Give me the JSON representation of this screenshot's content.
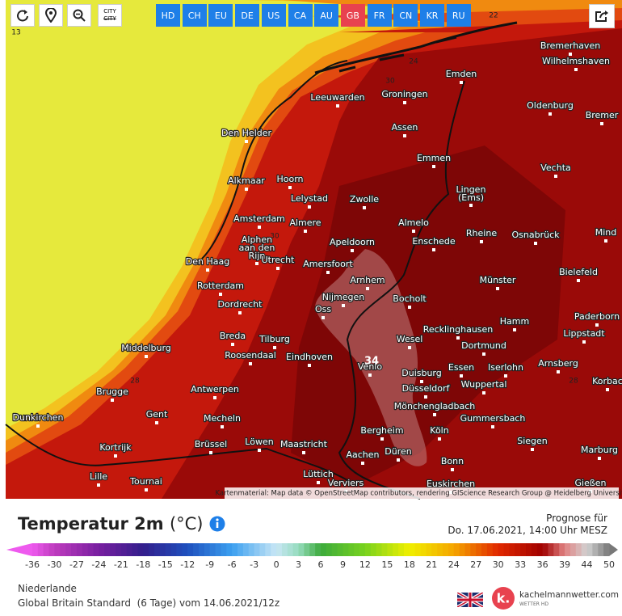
{
  "toolbar": {
    "city_icon_label": "CITY",
    "regions": [
      "HD",
      "CH",
      "EU",
      "DE",
      "US",
      "CA",
      "AU",
      "GB",
      "FR",
      "CN",
      "KR",
      "RU"
    ],
    "active": "GB"
  },
  "map": {
    "cities": [
      "Bremerhaven",
      "Wilhelmshaven",
      "Emden",
      "Leeuwarden",
      "Groningen",
      "Oldenburg",
      "Bremer",
      "Den Helder",
      "Assen",
      "Emmen",
      "Vechta",
      "Alkmaar",
      "Hoorn",
      "Lelystad",
      "Zwolle",
      [
        "Lingen",
        "(Ems)"
      ],
      "Amsterdam",
      "Almere",
      "Almelo",
      "Mind",
      "Rheine",
      "Osnabrück",
      [
        "Alphen",
        "aan den",
        "Rijn"
      ],
      "Apeldoorn",
      "Enschede",
      "Den Haag",
      "Utrecht",
      "Amersfoort",
      "Bielefeld",
      "Arnhem",
      "Münster",
      "Rotterdam",
      "Nijmegen",
      "Bocholt",
      "Dordrecht",
      "Oss",
      "Paderborn",
      "Hamm",
      "Breda",
      "Tilburg",
      "Recklinghausen",
      "Lippstadt",
      "Wesel",
      "Middelburg",
      "Dortmund",
      "Roosendaal",
      "Eindhoven",
      "Arnsberg",
      "Venlo",
      "Duisburg",
      "Essen",
      "Iserlohn",
      "Korbac",
      "Wuppertal",
      "Brugge",
      "Antwerpen",
      "Düsseldorf",
      "Mönchengladbach",
      "Gent",
      "Dunkirchen",
      "Mecheln",
      "Gummersbach",
      "Bergheim",
      "Köln",
      "Kortrijk",
      "Brüssel",
      "Löwen",
      "Maastricht",
      "Düren",
      "Siegen",
      "Marburg",
      "Aachen",
      "Bonn",
      "Lille",
      "Tournai",
      "Lüttich",
      "Verviers",
      "Euskirchen",
      "Gießen"
    ],
    "contour_labels": [
      "13",
      "22",
      "24",
      "30",
      "30",
      "28",
      "34",
      "28"
    ],
    "attribution": "Kartenmaterial: Map data © OpenStreetMap contributors, rendering GIScience Research Group @ Heidelberg University"
  },
  "legend": {
    "title": "Temperatur 2m",
    "unit": "(°C)",
    "forecast_label": "Prognose für",
    "forecast_time": "Do. 17.06.2021, 14:00 Uhr MESZ",
    "scale": [
      -36,
      -30,
      -27,
      -24,
      -21,
      -18,
      -15,
      -12,
      -9,
      -6,
      -3,
      0,
      3,
      6,
      9,
      12,
      15,
      18,
      21,
      24,
      27,
      30,
      33,
      36,
      39,
      44,
      50
    ]
  },
  "footer": {
    "region": "Niederlande",
    "model": "Global Britain Standard  (6 Tage) vom 14.06.2021/12z",
    "brand": "kachelmannwetter.com",
    "brand_sub": "WETTER HD"
  }
}
